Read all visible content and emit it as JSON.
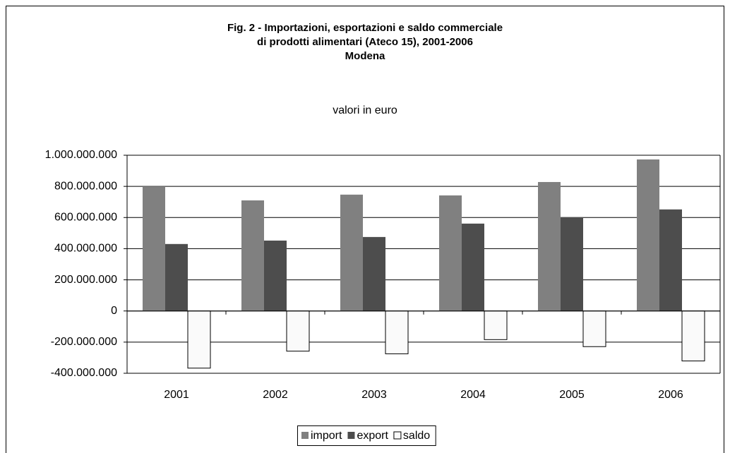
{
  "chart_data": {
    "type": "bar",
    "title": [
      "Fig. 2 - Importazioni, esportazioni e saldo commerciale",
      "di prodotti alimentari (Ateco 15), 2001-2006",
      "Modena"
    ],
    "subtitle": "valori in euro",
    "categories": [
      "2001",
      "2002",
      "2003",
      "2004",
      "2005",
      "2006"
    ],
    "series": [
      {
        "name": "import",
        "color": "#808080",
        "values": [
          800000000,
          710000000,
          747000000,
          742000000,
          828000000,
          973000000
        ]
      },
      {
        "name": "export",
        "color": "#4d4d4d",
        "values": [
          430000000,
          452000000,
          475000000,
          561000000,
          602000000,
          652000000
        ]
      },
      {
        "name": "saldo",
        "color": "#fafafa",
        "values": [
          -367000000,
          -258000000,
          -275000000,
          -184000000,
          -229000000,
          -321000000
        ]
      }
    ],
    "ylim": [
      -400000000,
      1000000000
    ],
    "yticks": [
      {
        "value": -400000000,
        "label": "-400.000.000"
      },
      {
        "value": -200000000,
        "label": "-200.000.000"
      },
      0,
      {
        "value": 200000000,
        "label": "200.000.000"
      },
      {
        "value": 400000000,
        "label": "400.000.000"
      },
      {
        "value": 600000000,
        "label": "600.000.000"
      },
      {
        "value": 800000000,
        "label": "800.000.000"
      },
      {
        "value": 1000000000,
        "label": "1.000.000.000"
      }
    ],
    "grid": true,
    "legend": "bottom"
  }
}
